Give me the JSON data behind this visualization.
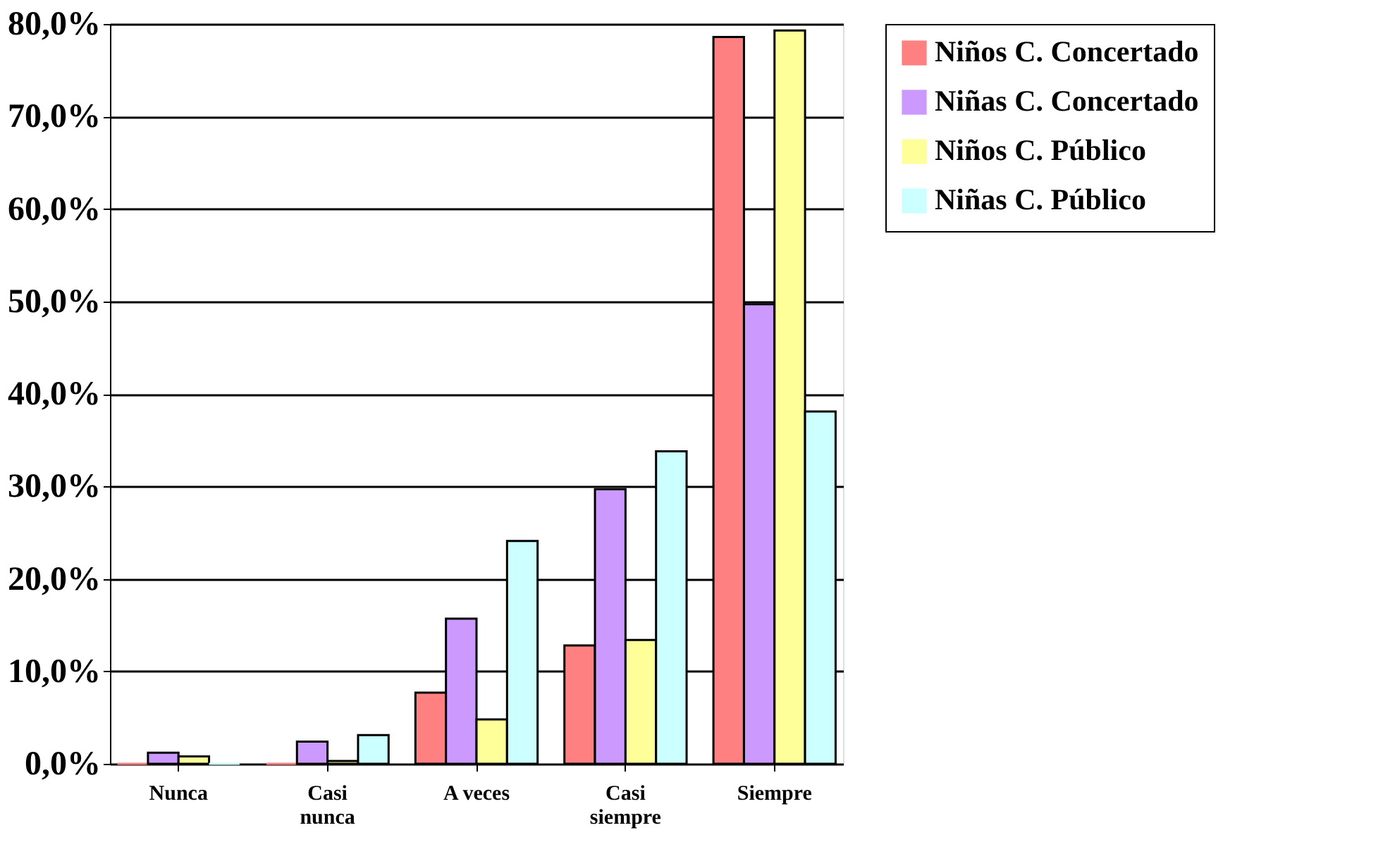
{
  "chart_data": {
    "type": "bar",
    "categories": [
      "Nunca",
      "Casi nunca",
      "A veces",
      "Casi siempre",
      "Siempre"
    ],
    "series": [
      {
        "name": "Niños C. Concertado",
        "color": "#ff8080",
        "values": [
          0,
          0,
          7.7,
          12.8,
          78.6
        ]
      },
      {
        "name": "Niñas C. Concertado",
        "color": "#cc99ff",
        "values": [
          1.2,
          2.4,
          15.7,
          29.7,
          49.7
        ]
      },
      {
        "name": "Niños C. Público",
        "color": "#ffff99",
        "values": [
          0.8,
          0.3,
          4.8,
          13.4,
          79.3
        ]
      },
      {
        "name": "Niñas C. Público",
        "color": "#ccffff",
        "values": [
          0,
          3.1,
          24.1,
          33.8,
          38.1
        ]
      }
    ],
    "ylim": [
      0,
      80
    ],
    "yticks": [
      {
        "value": 0,
        "label": "0,0%"
      },
      {
        "value": 10,
        "label": "10,0%"
      },
      {
        "value": 20,
        "label": "20,0%"
      },
      {
        "value": 30,
        "label": "30,0%"
      },
      {
        "value": 40,
        "label": "40,0%"
      },
      {
        "value": 50,
        "label": "50,0%"
      },
      {
        "value": 60,
        "label": "60,0%"
      },
      {
        "value": 70,
        "label": "70,0%"
      },
      {
        "value": 80,
        "label": "80,0%"
      }
    ],
    "grid": "y",
    "legend": "right"
  }
}
